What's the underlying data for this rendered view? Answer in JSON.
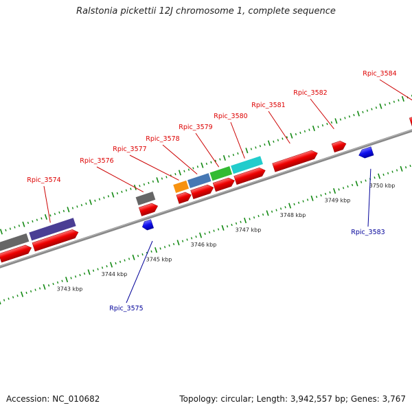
{
  "title": "Ralstonia pickettii 12J chromosome 1, complete sequence",
  "footer": {
    "accession": "Accession: NC_010682",
    "summary": "Topology: circular; Length: 3,942,557 bp; Genes: 3,767"
  },
  "colors": {
    "forward_gene": "#ee0000",
    "reverse_gene": "#1010ee",
    "backbone": "#888888",
    "tick": "#118811",
    "label_forward": "#dd0000",
    "label_reverse": "#000099"
  },
  "axis": {
    "unit": "kbp",
    "labels": [
      {
        "kbp": 3743,
        "text": "3743 kbp"
      },
      {
        "kbp": 3744,
        "text": "3744 kbp"
      },
      {
        "kbp": 3745,
        "text": "3745 kbp"
      },
      {
        "kbp": 3746,
        "text": "3746 kbp"
      },
      {
        "kbp": 3747,
        "text": "3747 kbp"
      },
      {
        "kbp": 3748,
        "text": "3748 kbp"
      },
      {
        "kbp": 3749,
        "text": "3749 kbp"
      },
      {
        "kbp": 3750,
        "text": "3750 kbp"
      }
    ]
  },
  "genes": [
    {
      "name": "Rpic_3574",
      "strand": "+",
      "start_kbp": 3742.55,
      "end_kbp": 3743.55,
      "labeled": true
    },
    {
      "name": "Rpic_3575",
      "strand": "-",
      "start_kbp": 3744.88,
      "end_kbp": 3745.1,
      "labeled": true
    },
    {
      "name": "Rpic_3576",
      "strand": "+",
      "start_kbp": 3744.94,
      "end_kbp": 3745.33,
      "labeled": true
    },
    {
      "name": "Rpic_3577",
      "strand": "+",
      "start_kbp": 3745.78,
      "end_kbp": 3746.08,
      "labeled": true
    },
    {
      "name": "Rpic_3578",
      "strand": "+",
      "start_kbp": 3746.1,
      "end_kbp": 3746.58,
      "labeled": true
    },
    {
      "name": "Rpic_3579",
      "strand": "+",
      "start_kbp": 3746.6,
      "end_kbp": 3747.05,
      "labeled": true
    },
    {
      "name": "Rpic_3580",
      "strand": "+",
      "start_kbp": 3747.07,
      "end_kbp": 3747.74,
      "labeled": true
    },
    {
      "name": "Rpic_3581",
      "strand": "+",
      "start_kbp": 3747.93,
      "end_kbp": 3748.91,
      "labeled": true
    },
    {
      "name": "Rpic_3582",
      "strand": "+",
      "start_kbp": 3749.26,
      "end_kbp": 3749.55,
      "labeled": true
    },
    {
      "name": "Rpic_3583",
      "strand": "-",
      "start_kbp": 3749.73,
      "end_kbp": 3750.03,
      "labeled": true
    },
    {
      "name": "Rpic_3584",
      "strand": "+",
      "start_kbp": 3751.0,
      "end_kbp": 3751.45,
      "labeled": true
    },
    {
      "name": "",
      "strand": "+",
      "start_kbp": 3741.8,
      "end_kbp": 3742.5,
      "labeled": false
    }
  ],
  "feature_blocks": [
    {
      "gene": "Rpic_3574",
      "color": "#4a3e94",
      "start_kbp": 3742.55,
      "end_kbp": 3743.55
    },
    {
      "gene": "",
      "color": "#666666",
      "start_kbp": 3741.8,
      "end_kbp": 3742.5
    },
    {
      "gene": "Rpic_3576",
      "color": "#666666",
      "start_kbp": 3744.94,
      "end_kbp": 3745.33
    },
    {
      "gene": "Rpic_3577",
      "color": "#f7920f",
      "start_kbp": 3745.78,
      "end_kbp": 3746.08
    },
    {
      "gene": "Rpic_3578",
      "color": "#4678b4",
      "start_kbp": 3746.1,
      "end_kbp": 3746.58
    },
    {
      "gene": "Rpic_3579",
      "color": "#33bb33",
      "start_kbp": 3746.6,
      "end_kbp": 3747.05
    },
    {
      "gene": "Rpic_3580",
      "color": "#22cccc",
      "start_kbp": 3747.07,
      "end_kbp": 3747.74
    }
  ]
}
